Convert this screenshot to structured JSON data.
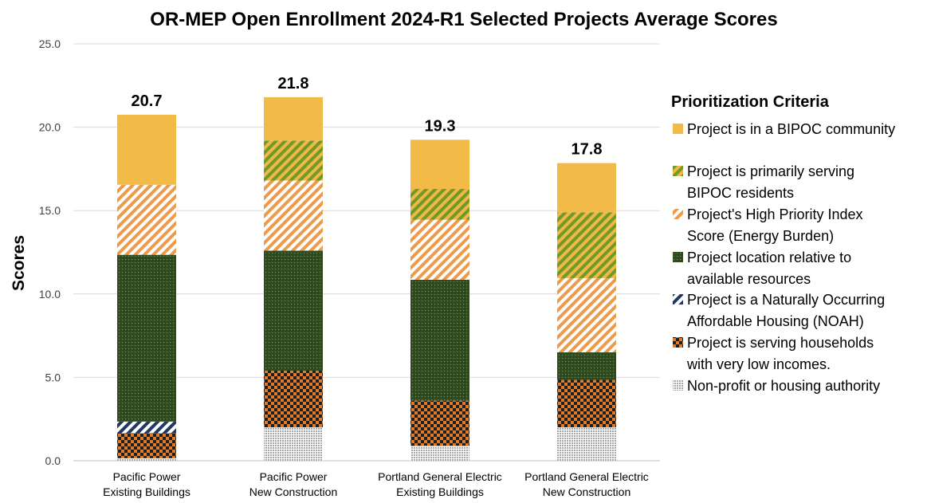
{
  "chart_data": {
    "type": "bar",
    "stacked": true,
    "title": "OR-MEP Open Enrollment 2024-R1 Selected Projects Average Scores",
    "ylabel": "Scores",
    "xlabel": "",
    "ylim": [
      0,
      25
    ],
    "yticks": [
      "0.0",
      "5.0",
      "10.0",
      "15.0",
      "20.0",
      "25.0"
    ],
    "grid": true,
    "legend_title": "Prioritization Criteria",
    "legend_position": "right",
    "categories": [
      [
        "Pacific Power",
        "Existing Buildings"
      ],
      [
        "Pacific Power",
        "New Construction"
      ],
      [
        "Portland General Electric",
        "Existing Buildings"
      ],
      [
        "Portland General Electric",
        "New Construction"
      ]
    ],
    "totals": [
      "20.7",
      "21.8",
      "19.3",
      "17.8"
    ],
    "series": [
      {
        "name": "Non-profit or housing authority",
        "pattern": "dots",
        "colors": [
          "#a6a6a6",
          "#ffffff"
        ],
        "values": [
          0.15,
          2.0,
          0.9,
          2.0
        ]
      },
      {
        "name": "Project is serving households with very low incomes.",
        "pattern": "checker",
        "colors": [
          "#e07b2e",
          "#1f1f1f"
        ],
        "values": [
          1.5,
          3.4,
          2.7,
          2.85
        ]
      },
      {
        "name": "Project is a Naturally Occurring Affordable Housing (NOAH)",
        "pattern": "diag",
        "colors": [
          "#203864",
          "#ffffff"
        ],
        "values": [
          0.7,
          0.0,
          0.0,
          0.0
        ]
      },
      {
        "name": "Project location relative to available resources",
        "pattern": "dense",
        "colors": [
          "#2f4a1f",
          "#7f9a5e"
        ],
        "values": [
          10.0,
          7.2,
          7.25,
          1.65
        ]
      },
      {
        "name": "Project's High Priority Index Score (Energy Burden)",
        "pattern": "diag",
        "colors": [
          "#ed9a4a",
          "#ffffff"
        ],
        "values": [
          4.2,
          4.2,
          3.6,
          4.45
        ]
      },
      {
        "name": "Project is primarily serving BIPOC residents",
        "pattern": "diag",
        "colors": [
          "#6f9a2a",
          "#f2b844"
        ],
        "values": [
          0.0,
          2.4,
          1.85,
          3.95
        ]
      },
      {
        "name": "Project is in a BIPOC community",
        "pattern": "solid",
        "colors": [
          "#f2bb47",
          "#f2bb47"
        ],
        "values": [
          4.2,
          2.6,
          2.95,
          2.95
        ]
      }
    ]
  }
}
